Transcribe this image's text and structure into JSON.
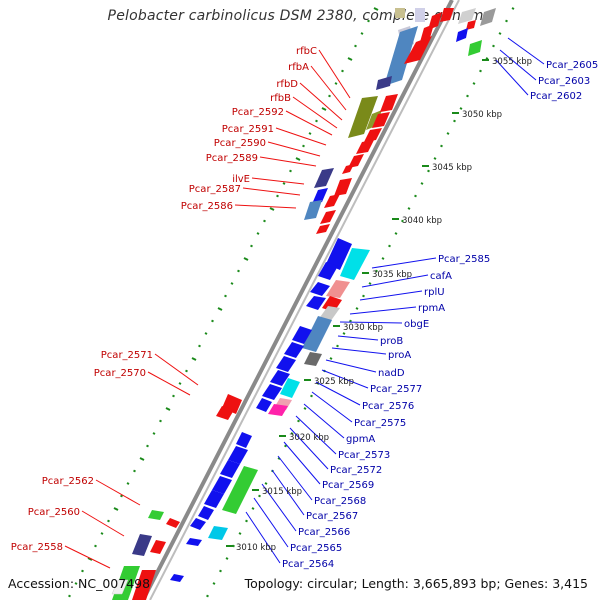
{
  "title": "Pelobacter carbinolicus DSM 2380, complete genome",
  "footer": {
    "accession": "Accession: NC_007498",
    "topology": "Topology: circular; Length: 3,665,893 bp; Genes: 3,415"
  },
  "colors": {
    "forward_gene": "#ee1111",
    "reverse_gene": "#1111ee",
    "olive": "#7a8a1a",
    "steel_blue": "#4f86c0",
    "cyan": "#00e0e8",
    "green": "#33cc33",
    "salmon": "#f09090",
    "grey": "#9a9a9a",
    "magenta": "#ff22aa",
    "navy_purple": "#3a3a88",
    "tick_green": "#1a8a1a",
    "label_red": "#c00000",
    "label_blue": "#0000a8"
  },
  "kbp_markers": [
    "3055 kbp",
    "3050 kbp",
    "3045 kbp",
    "3040 kbp",
    "3035 kbp",
    "3030 kbp",
    "3025 kbp",
    "3020 kbp",
    "3015 kbp",
    "3010 kbp"
  ],
  "left_labels": [
    "rfbC",
    "rfbA",
    "rfbD",
    "rfbB",
    "Pcar_2592",
    "Pcar_2591",
    "Pcar_2590",
    "Pcar_2589",
    "ilvE",
    "Pcar_2587",
    "Pcar_2586",
    "Pcar_2571",
    "Pcar_2570",
    "Pcar_2562",
    "Pcar_2560",
    "Pcar_2558"
  ],
  "right_labels": [
    "Pcar_2605",
    "Pcar_2603",
    "Pcar_2602",
    "Pcar_2585",
    "cafA",
    "rplU",
    "rpmA",
    "obgE",
    "proB",
    "proA",
    "nadD",
    "Pcar_2577",
    "Pcar_2576",
    "Pcar_2575",
    "gpmA",
    "Pcar_2573",
    "Pcar_2572",
    "Pcar_2569",
    "Pcar_2568",
    "Pcar_2567",
    "Pcar_2566",
    "Pcar_2565",
    "Pcar_2564"
  ]
}
